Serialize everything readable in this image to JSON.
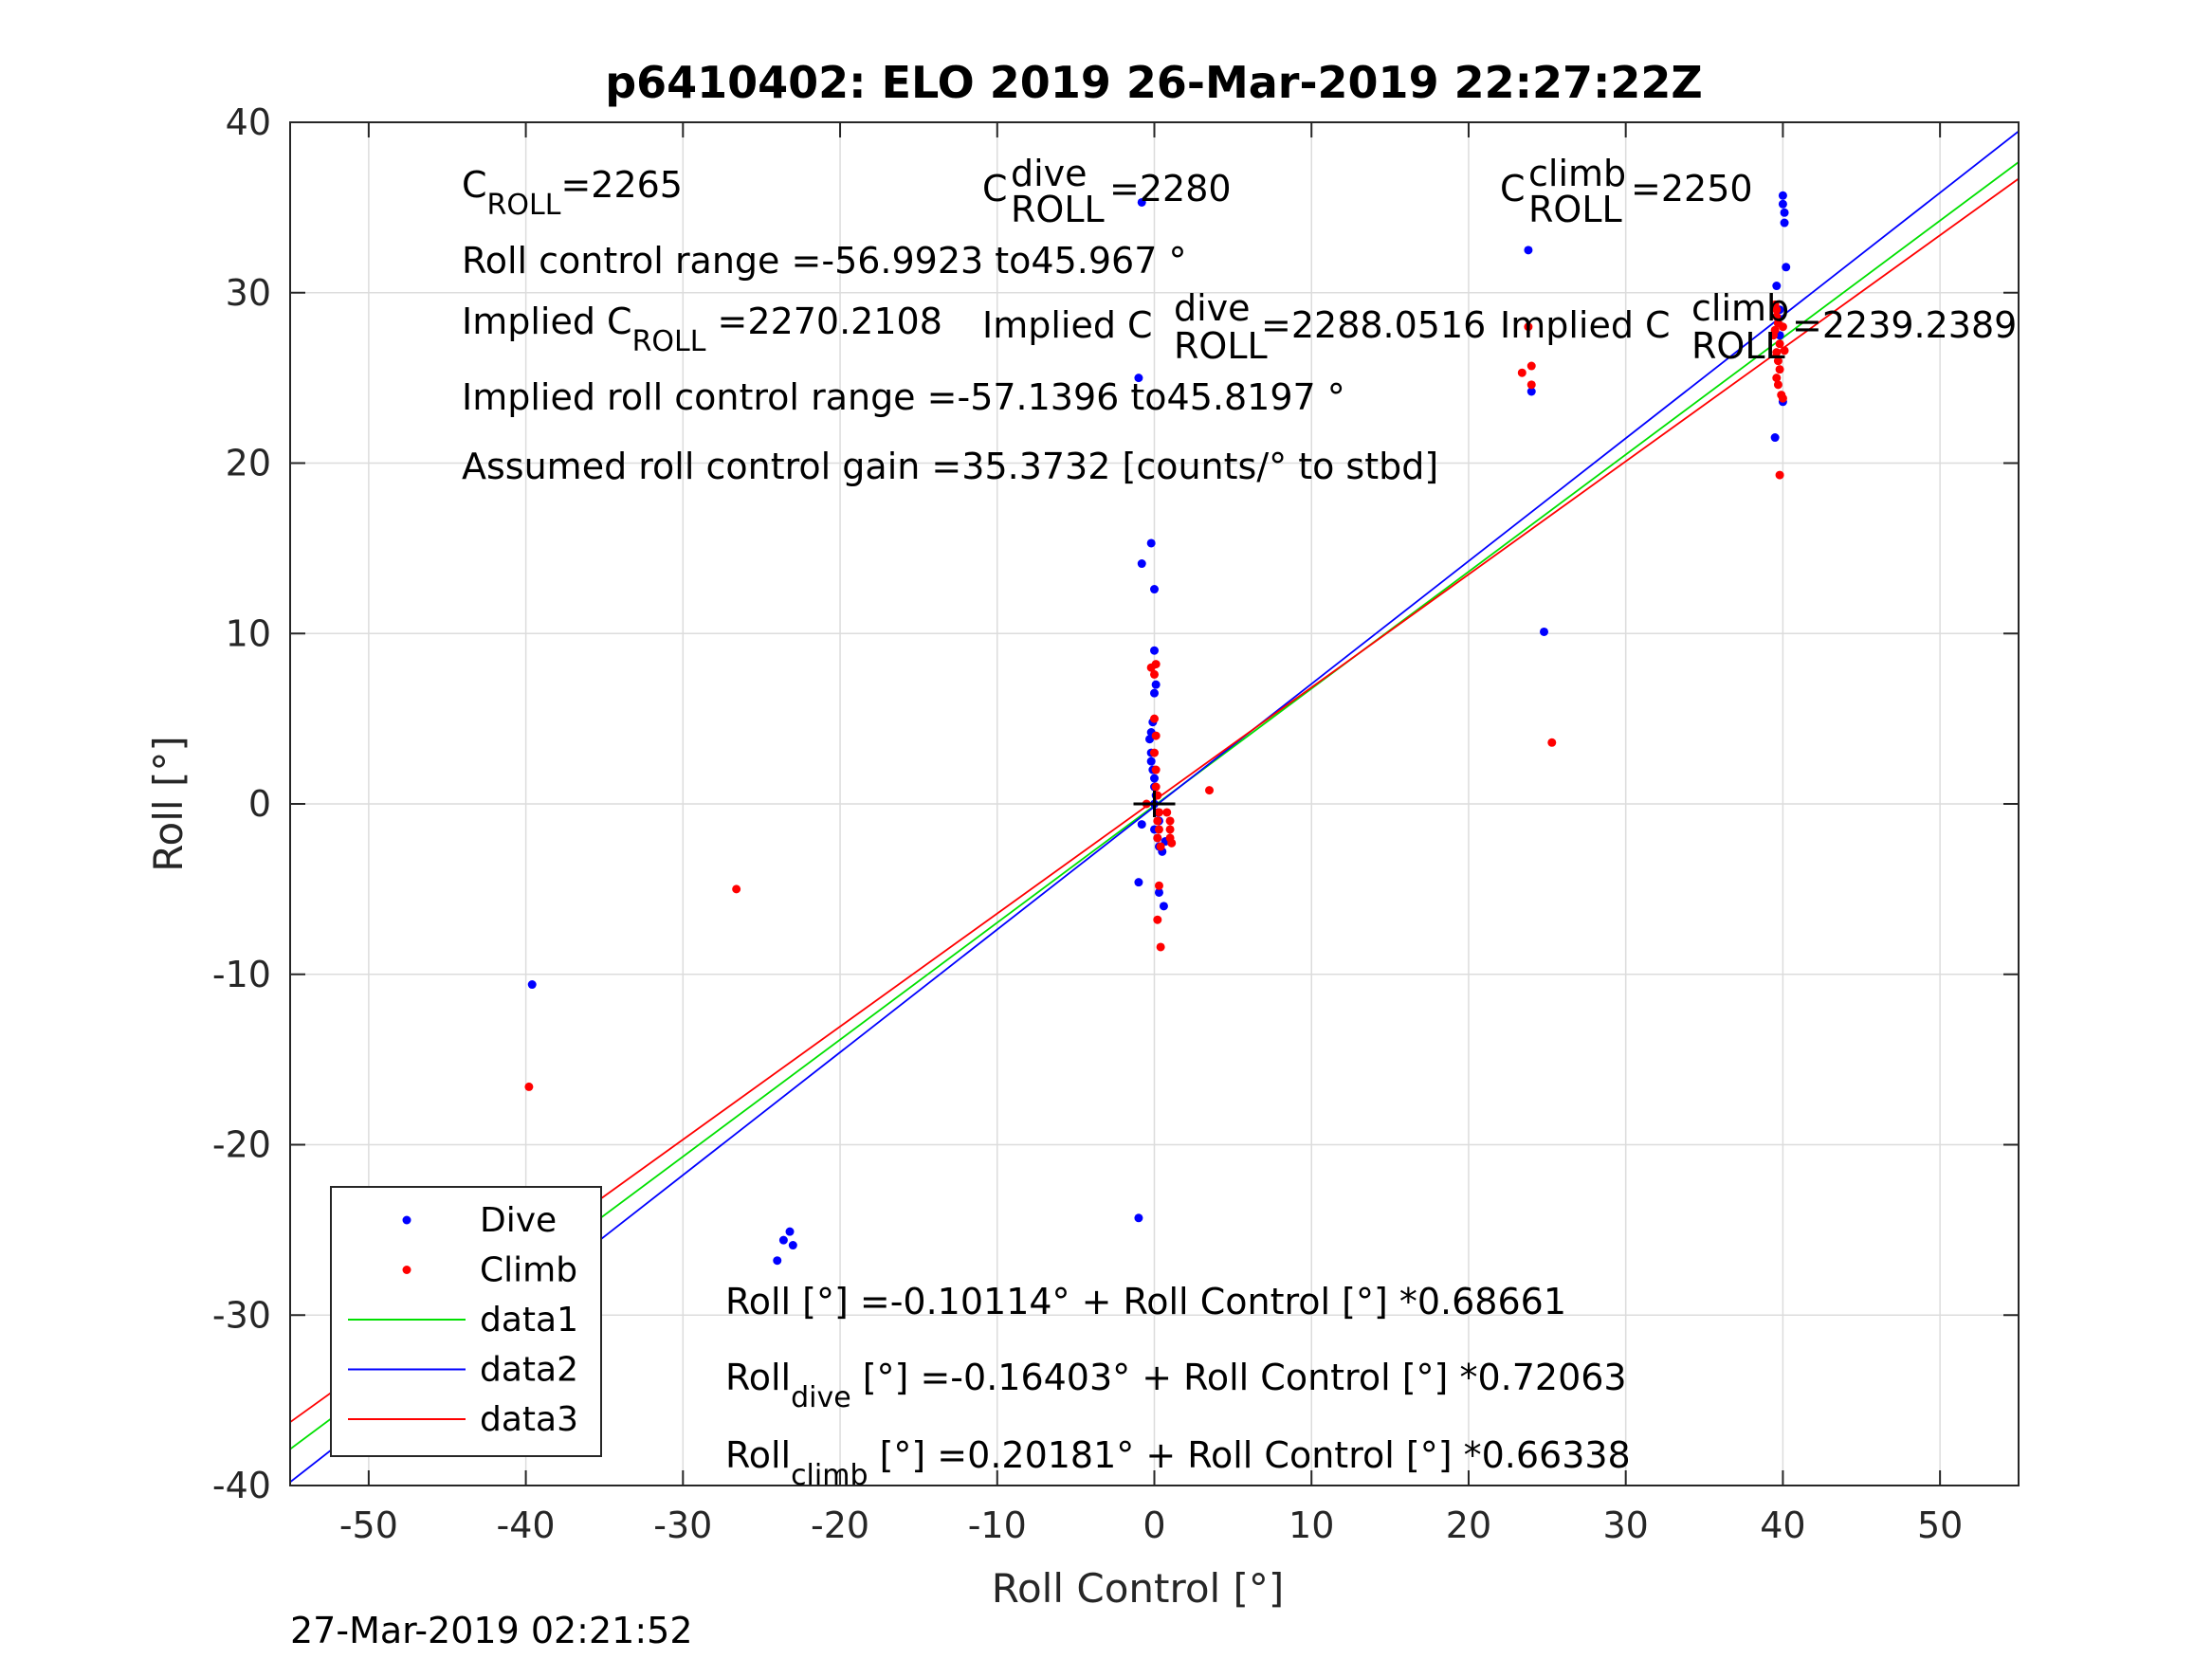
{
  "chart_data": {
    "type": "scatter",
    "title": "p6410402: ELO 2019 26-Mar-2019 22:27:22Z",
    "xlabel": "Roll Control [°]",
    "ylabel": "Roll [°]",
    "xlim": [
      -55,
      55
    ],
    "ylim": [
      -40,
      40
    ],
    "xticks": [
      -50,
      -40,
      -30,
      -20,
      -10,
      0,
      10,
      20,
      30,
      40,
      50
    ],
    "yticks": [
      -40,
      -30,
      -20,
      -10,
      0,
      10,
      20,
      30,
      40
    ],
    "grid": true,
    "legend_position": "bottom-left",
    "timestamp": "27-Mar-2019 02:21:52",
    "series": [
      {
        "name": "Dive",
        "type": "scatter",
        "color": "#0000ff",
        "points": [
          [
            -39.6,
            -10.6
          ],
          [
            -39.7,
            -26.0
          ],
          [
            -39.8,
            -26.5
          ],
          [
            -39.7,
            -27.0
          ],
          [
            -39.9,
            -27.5
          ],
          [
            -39.8,
            -27.8
          ],
          [
            -40.0,
            -28.0
          ],
          [
            -24.0,
            -26.8
          ],
          [
            -23.6,
            -25.6
          ],
          [
            -23.2,
            -25.1
          ],
          [
            -23.0,
            -25.9
          ],
          [
            -1.0,
            -24.3
          ],
          [
            -1.0,
            -4.6
          ],
          [
            -1.0,
            25.0
          ],
          [
            -0.8,
            35.3
          ],
          [
            -0.8,
            14.1
          ],
          [
            -0.2,
            15.3
          ],
          [
            0.0,
            12.6
          ],
          [
            0.0,
            9.0
          ],
          [
            0.1,
            7.0
          ],
          [
            0.0,
            6.5
          ],
          [
            -0.1,
            4.8
          ],
          [
            -0.2,
            4.2
          ],
          [
            -0.3,
            3.8
          ],
          [
            -0.2,
            3.0
          ],
          [
            -0.2,
            2.5
          ],
          [
            -0.1,
            2.0
          ],
          [
            0.0,
            1.5
          ],
          [
            0.0,
            1.0
          ],
          [
            0.1,
            0.5
          ],
          [
            0.0,
            0.0
          ],
          [
            0.2,
            -0.5
          ],
          [
            0.3,
            -1.0
          ],
          [
            0.0,
            -1.5
          ],
          [
            0.2,
            -2.0
          ],
          [
            0.3,
            -2.5
          ],
          [
            0.5,
            -2.8
          ],
          [
            0.7,
            -2.2
          ],
          [
            -0.8,
            -1.2
          ],
          [
            0.3,
            -5.2
          ],
          [
            0.6,
            -6.0
          ],
          [
            23.8,
            32.5
          ],
          [
            24.0,
            24.2
          ],
          [
            24.8,
            10.1
          ],
          [
            39.5,
            21.5
          ],
          [
            39.6,
            30.4
          ],
          [
            39.8,
            29.0
          ],
          [
            40.0,
            35.7
          ],
          [
            40.0,
            35.2
          ],
          [
            40.1,
            34.7
          ],
          [
            40.1,
            34.1
          ],
          [
            40.2,
            31.5
          ],
          [
            40.0,
            23.6
          ],
          [
            39.7,
            28.5
          ],
          [
            39.8,
            27.5
          ]
        ]
      },
      {
        "name": "Climb",
        "type": "scatter",
        "color": "#ff0000",
        "points": [
          [
            -39.8,
            -16.6
          ],
          [
            -39.6,
            -25.8
          ],
          [
            -39.7,
            -26.6
          ],
          [
            -26.6,
            -5.0
          ],
          [
            -0.5,
            0.0
          ],
          [
            -0.2,
            8.0
          ],
          [
            0.0,
            7.6
          ],
          [
            0.1,
            8.2
          ],
          [
            0.0,
            5.0
          ],
          [
            0.1,
            4.0
          ],
          [
            0.0,
            3.0
          ],
          [
            0.1,
            2.0
          ],
          [
            0.1,
            1.0
          ],
          [
            0.2,
            0.5
          ],
          [
            0.3,
            -0.5
          ],
          [
            0.2,
            -1.0
          ],
          [
            0.3,
            -1.5
          ],
          [
            0.2,
            -2.0
          ],
          [
            0.4,
            -2.5
          ],
          [
            0.8,
            -0.5
          ],
          [
            1.0,
            -1.0
          ],
          [
            1.0,
            -1.5
          ],
          [
            1.0,
            -2.0
          ],
          [
            1.1,
            -2.3
          ],
          [
            0.3,
            -4.8
          ],
          [
            0.2,
            -6.8
          ],
          [
            0.4,
            -8.4
          ],
          [
            3.5,
            0.8
          ],
          [
            23.4,
            25.3
          ],
          [
            23.8,
            28.0
          ],
          [
            24.0,
            25.7
          ],
          [
            24.0,
            24.6
          ],
          [
            25.3,
            3.6
          ],
          [
            39.4,
            27.5
          ],
          [
            39.5,
            29.3
          ],
          [
            39.6,
            29.0
          ],
          [
            39.7,
            28.2
          ],
          [
            39.8,
            27.0
          ],
          [
            39.6,
            26.5
          ],
          [
            39.7,
            26.0
          ],
          [
            39.8,
            25.5
          ],
          [
            39.6,
            25.0
          ],
          [
            39.7,
            24.6
          ],
          [
            39.9,
            24.0
          ],
          [
            40.0,
            23.8
          ],
          [
            39.8,
            19.3
          ],
          [
            40.0,
            28.0
          ],
          [
            40.1,
            26.6
          ],
          [
            39.5,
            27.8
          ],
          [
            39.6,
            28.6
          ]
        ]
      },
      {
        "name": "data1",
        "type": "line",
        "color": "#00e000",
        "intercept": -0.10114,
        "slope": 0.68661
      },
      {
        "name": "data2",
        "type": "line",
        "color": "#0000ff",
        "intercept": -0.16403,
        "slope": 0.72063
      },
      {
        "name": "data3",
        "type": "line",
        "color": "#ff0000",
        "intercept": 0.20181,
        "slope": 0.66338
      }
    ],
    "origin_marker": {
      "x": 0,
      "y": 0
    }
  },
  "annotations": {
    "c_roll": {
      "base": "C",
      "sub": "ROLL",
      "val": "=2265"
    },
    "c_roll_dive": {
      "base": "C",
      "sup": "dive",
      "sub": "ROLL",
      "val": "=2280"
    },
    "c_roll_climb": {
      "base": "C",
      "sup": "climb",
      "sub": "ROLL",
      "val": "=2250"
    },
    "roll_range": "Roll control range =-56.9923 to45.967 °",
    "implied_c_roll": {
      "base": "Implied C",
      "sub": "ROLL",
      "val": " =2270.2108"
    },
    "implied_c_roll_dive": {
      "base": "Implied C",
      "sup": "dive",
      "sub": "ROLL",
      "val": " =2288.0516"
    },
    "implied_c_roll_climb": {
      "base": "Implied C",
      "sup": "climb",
      "sub": "ROLL",
      "val": "=2239.2389"
    },
    "implied_range": "Implied roll control range =-57.1396 to45.8197 °",
    "gain": "Assumed roll control gain =35.3732 [counts/° to stbd]",
    "fit_all": "Roll [°] =-0.10114° + Roll Control [°] *0.68661",
    "fit_dive": {
      "base": "Roll",
      "sub": "dive",
      "val": " [°] =-0.16403° + Roll Control [°] *0.72063"
    },
    "fit_climb": {
      "base": "Roll",
      "sub": "climb",
      "val": " [°] =0.20181° + Roll Control [°] *0.66338"
    }
  }
}
